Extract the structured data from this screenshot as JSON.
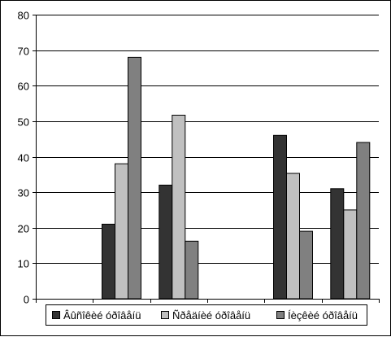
{
  "chart_data": {
    "type": "bar",
    "title": "",
    "xlabel": "",
    "ylabel": "",
    "ylim": [
      0,
      80
    ],
    "yticks": [
      0,
      10,
      20,
      30,
      40,
      50,
      60,
      70,
      80
    ],
    "categories": [
      "",
      "",
      "",
      "",
      "",
      ""
    ],
    "series": [
      {
        "name": "Âûñîêèé óðîâåíü",
        "color": "#333333",
        "values": [
          null,
          21,
          32,
          null,
          46,
          31
        ]
      },
      {
        "name": "Ñðåäíèé óðîâåíü",
        "color": "#c0c0c0",
        "values": [
          null,
          38,
          51.7,
          null,
          35.3,
          25
        ]
      },
      {
        "name": "Íèçêèé óðîâåíü",
        "color": "#808080",
        "values": [
          null,
          68,
          16.2,
          null,
          19,
          44
        ]
      }
    ],
    "grid": true,
    "legend_position": "bottom"
  }
}
